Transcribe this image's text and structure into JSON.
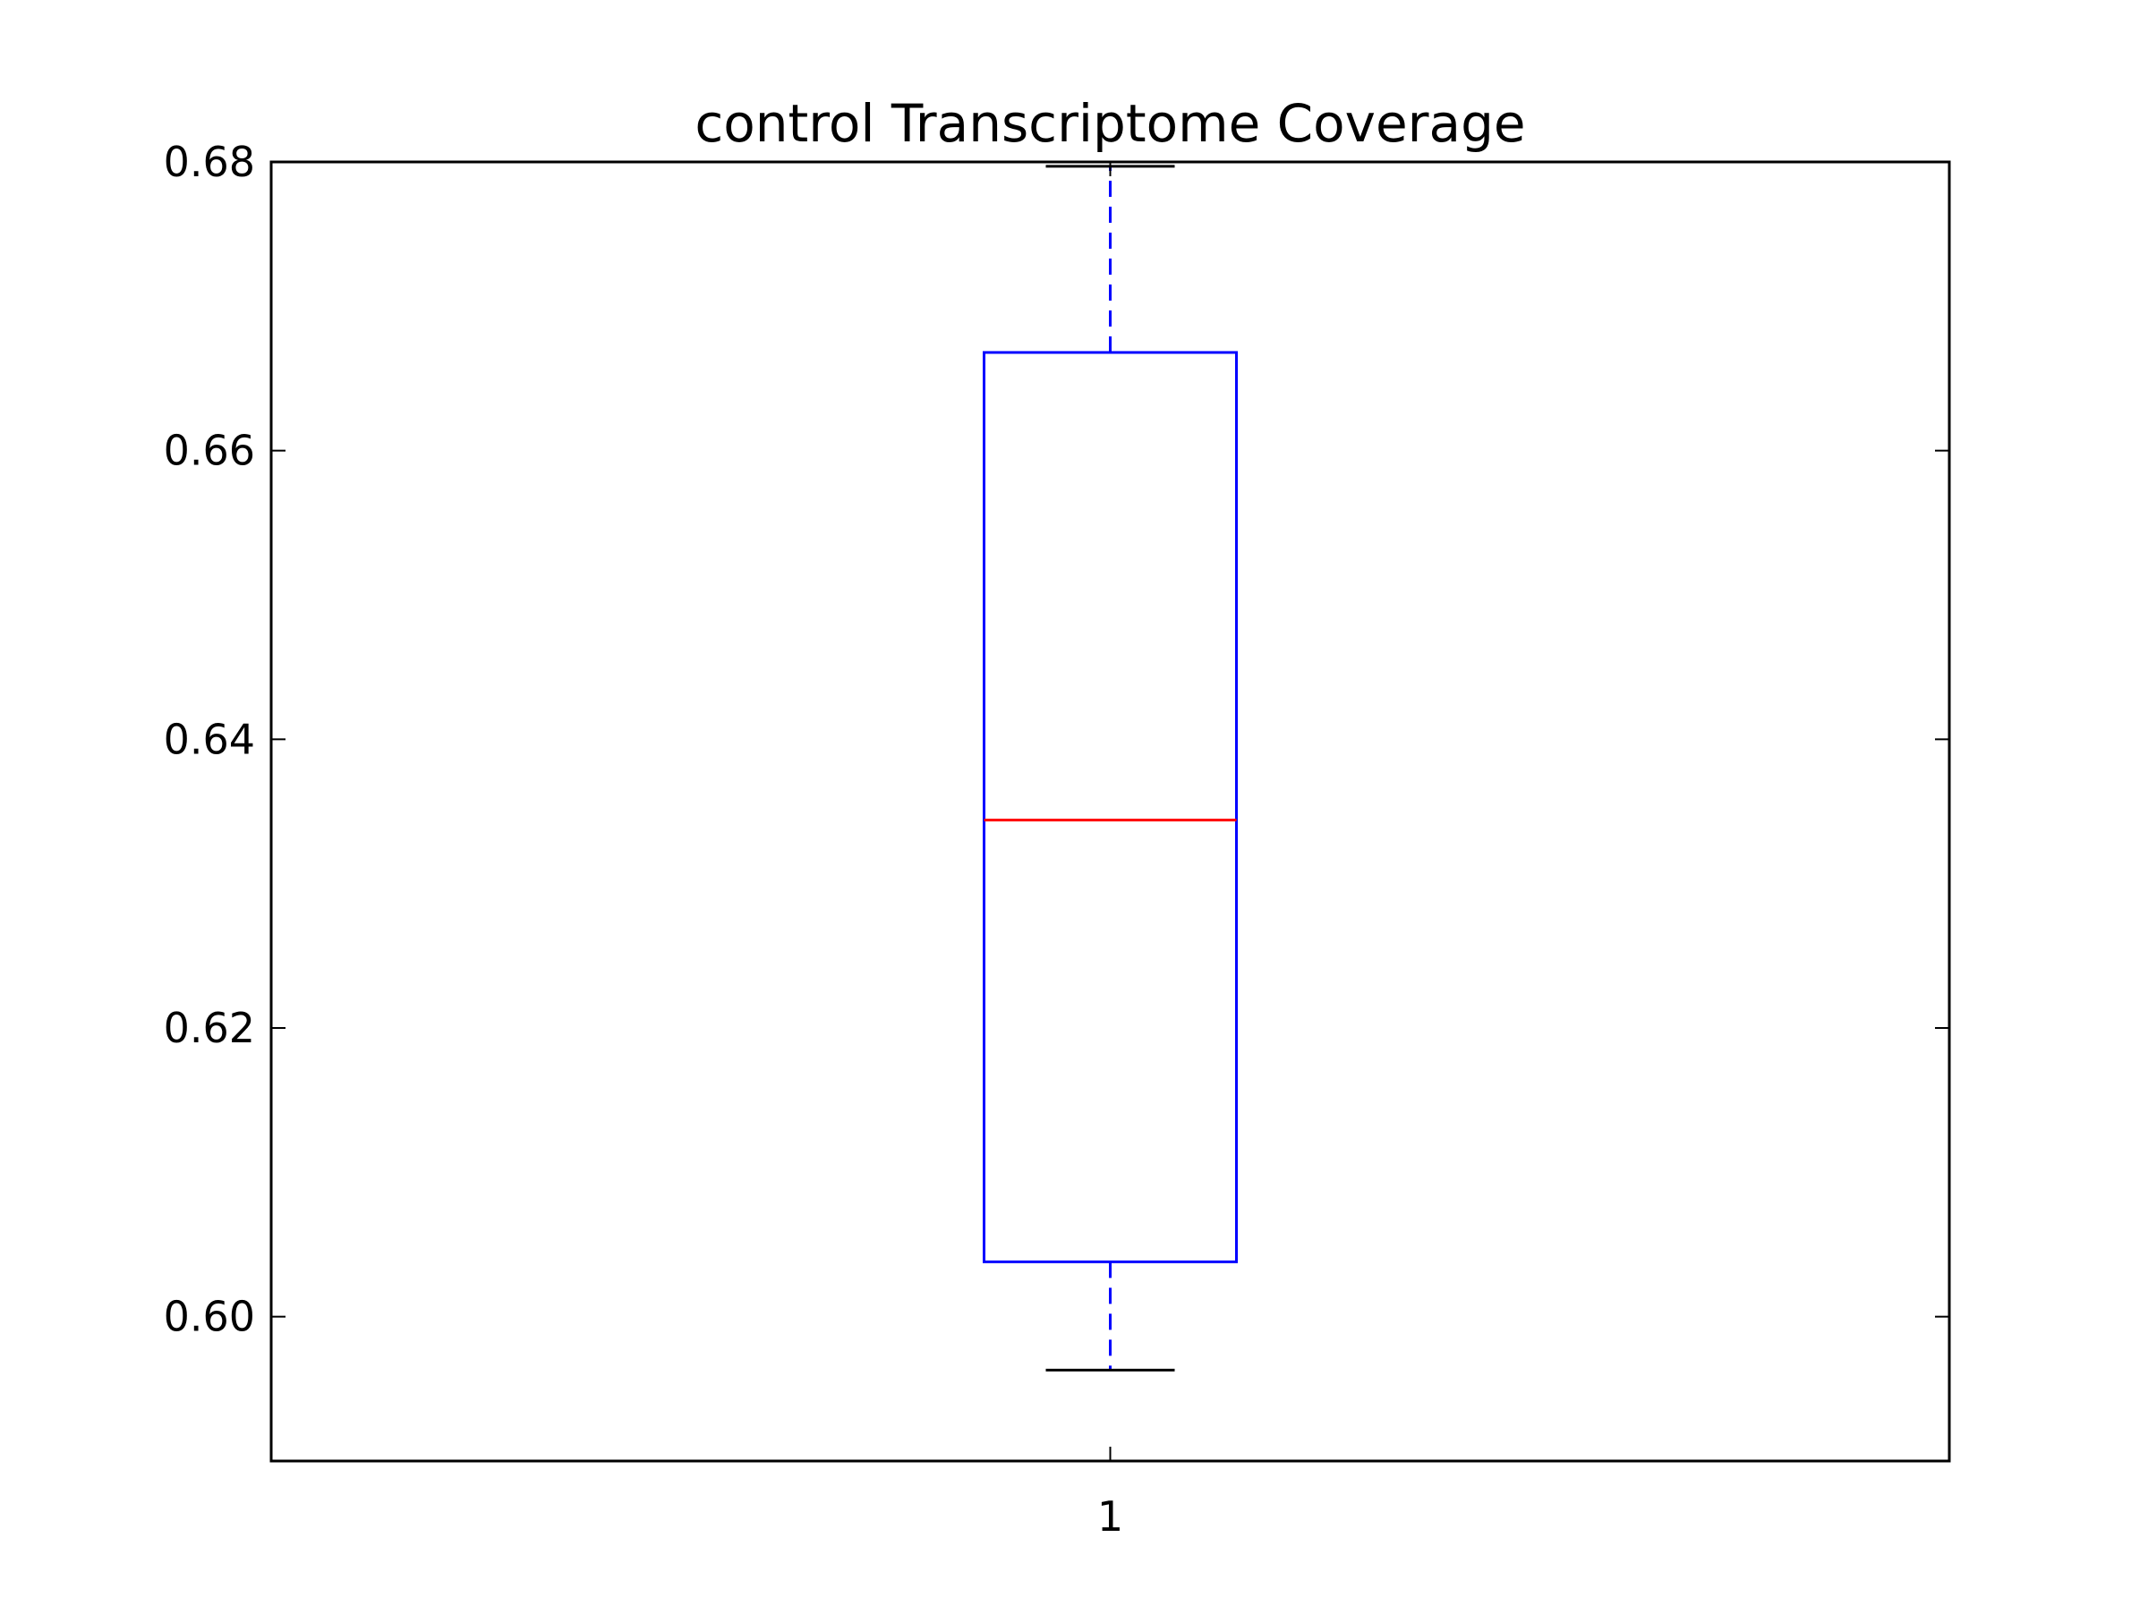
{
  "chart_data": {
    "type": "box",
    "title": "control Transcriptome Coverage",
    "xlabel": "",
    "ylabel": "",
    "categories": [
      "1"
    ],
    "ylim": [
      0.59,
      0.68
    ],
    "yticks": [
      0.6,
      0.62,
      0.64,
      0.66,
      0.68
    ],
    "ytick_labels": [
      "0.60",
      "0.62",
      "0.64",
      "0.66",
      "0.68"
    ],
    "boxes": [
      {
        "category": "1",
        "whisker_low": 0.5963,
        "q1": 0.6038,
        "median": 0.6344,
        "q3": 0.6668,
        "whisker_high": 0.6797
      }
    ],
    "grid": false,
    "legend": "none",
    "colors": {
      "box": "#0000ff",
      "median": "#ff0000",
      "whisker": "#0000ff",
      "cap": "#000000",
      "axes": "#000000"
    }
  }
}
